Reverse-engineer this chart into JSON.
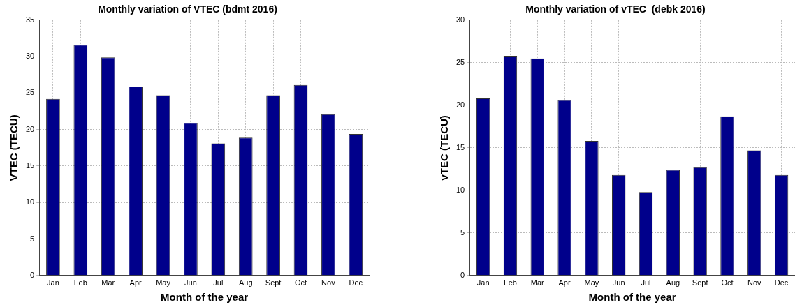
{
  "chart_data": [
    {
      "type": "bar",
      "title": "Monthly variation of VTEC (bdmt 2016)",
      "xlabel": "Month of the year",
      "ylabel": "VTEC (TECU)",
      "categories": [
        "Jan",
        "Feb",
        "Mar",
        "Apr",
        "May",
        "Jun",
        "Jul",
        "Aug",
        "Sept",
        "Oct",
        "Nov",
        "Dec"
      ],
      "values": [
        24.2,
        31.6,
        29.9,
        25.9,
        24.7,
        20.9,
        18.1,
        18.9,
        24.7,
        26.1,
        22.1,
        19.4
      ],
      "color": "#00008b",
      "ylim": [
        0,
        35
      ],
      "yticks": [
        0,
        5,
        10,
        15,
        20,
        25,
        30,
        35
      ],
      "grid": true
    },
    {
      "type": "bar",
      "title": "Monthly variation of vTEC  (debk 2016)",
      "xlabel": "Month of the year",
      "ylabel": "vTEC (TECU)",
      "categories": [
        "Jan",
        "Feb",
        "Mar",
        "Apr",
        "May",
        "Jun",
        "Jul",
        "Aug",
        "Sept",
        "Oct",
        "Nov",
        "Dec"
      ],
      "values": [
        20.8,
        25.8,
        25.5,
        20.6,
        15.8,
        11.8,
        9.8,
        12.4,
        12.7,
        18.7,
        14.7,
        11.8
      ],
      "color": "#00008b",
      "ylim": [
        0,
        30
      ],
      "yticks": [
        0,
        5,
        10,
        15,
        20,
        25,
        30
      ],
      "grid": true
    }
  ]
}
